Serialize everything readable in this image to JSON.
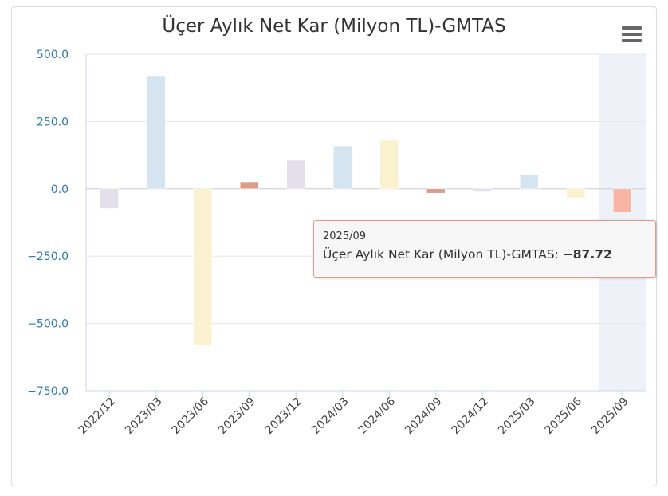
{
  "chart_data": {
    "type": "bar",
    "title": "Üçer Aylık Net Kar (Milyon TL)-GMTAS",
    "categories": [
      "2022/12",
      "2023/03",
      "2023/06",
      "2023/09",
      "2023/12",
      "2024/03",
      "2024/06",
      "2024/09",
      "2024/12",
      "2025/03",
      "2025/06",
      "2025/09"
    ],
    "values": [
      -73,
      420,
      -582,
      26,
      106,
      159,
      180,
      -16,
      -11,
      52,
      -33,
      -87.72
    ],
    "colors": [
      "#e3e0ec",
      "#d4e5f1",
      "#faf2cf",
      "#e09c8a",
      "#e3e0ec",
      "#d4e5f1",
      "#faf2cf",
      "#e09c8a",
      "#e3e0ec",
      "#d4e5f1",
      "#faf2cf",
      "#f8b5a5"
    ],
    "ylim": [
      -750,
      500
    ],
    "yticks": [
      500,
      250,
      0,
      -250,
      -500,
      -750
    ],
    "ytick_labels": [
      "500.0",
      "250.0",
      "0.0",
      "−250.0",
      "−500.0",
      "−750.0"
    ],
    "xlabel": "",
    "ylabel": "",
    "grid": true,
    "highlighted_index": 11
  },
  "tooltip": {
    "date": "2025/09",
    "label": "Üçer Aylık Net Kar (Milyon TL)-GMTAS: ",
    "value": "−87.72"
  },
  "menu_icon": "hamburger-menu-icon"
}
